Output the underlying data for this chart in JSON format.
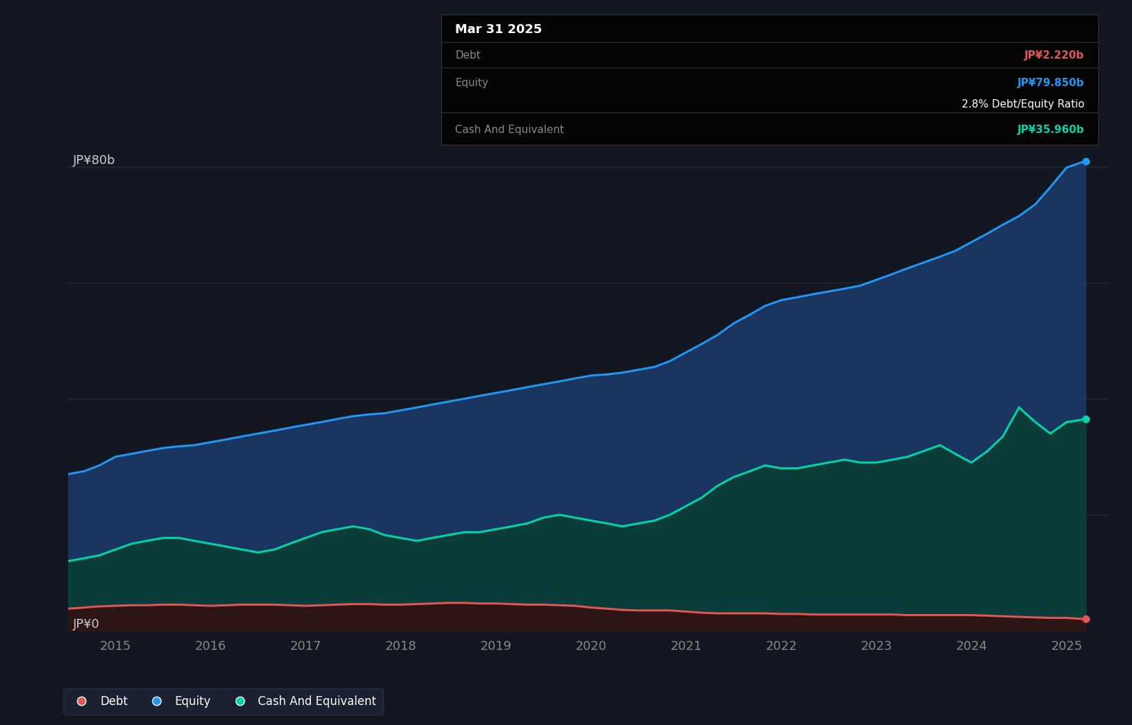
{
  "background_color": "#131722",
  "plot_bg_color": "#131722",
  "grid_color": "#1e2d3d",
  "ylabel_80": "JP¥80b",
  "ylabel_0": "JP¥0",
  "x_ticks": [
    2015,
    2016,
    2017,
    2018,
    2019,
    2020,
    2021,
    2022,
    2023,
    2024,
    2025
  ],
  "equity_color": "#2196f3",
  "equity_fill": "#1a3560",
  "cash_color": "#00d4aa",
  "cash_fill": "#0a3d3a",
  "debt_color": "#e05555",
  "debt_fill": "#2d1515",
  "tooltip_bg": "#050505",
  "tooltip_border": "#333333",
  "tooltip_title": "Mar 31 2025",
  "tooltip_debt_label": "Debt",
  "tooltip_debt_value": "JP¥2.220b",
  "tooltip_equity_label": "Equity",
  "tooltip_equity_value": "JP¥79.850b",
  "tooltip_ratio": "2.8% Debt/Equity Ratio",
  "tooltip_cash_label": "Cash And Equivalent",
  "tooltip_cash_value": "JP¥35.960b",
  "legend_items": [
    "Debt",
    "Equity",
    "Cash And Equivalent"
  ],
  "ylim_min": 0,
  "ylim_max": 90,
  "xlim_start": 2014.5,
  "xlim_end": 2025.45,
  "equity_x": [
    2014.5,
    2014.67,
    2014.83,
    2015.0,
    2015.17,
    2015.33,
    2015.5,
    2015.67,
    2015.83,
    2016.0,
    2016.17,
    2016.33,
    2016.5,
    2016.67,
    2016.83,
    2017.0,
    2017.17,
    2017.33,
    2017.5,
    2017.67,
    2017.83,
    2018.0,
    2018.17,
    2018.33,
    2018.5,
    2018.67,
    2018.83,
    2019.0,
    2019.17,
    2019.33,
    2019.5,
    2019.67,
    2019.83,
    2020.0,
    2020.17,
    2020.33,
    2020.5,
    2020.67,
    2020.83,
    2021.0,
    2021.17,
    2021.33,
    2021.5,
    2021.67,
    2021.83,
    2022.0,
    2022.17,
    2022.33,
    2022.5,
    2022.67,
    2022.83,
    2023.0,
    2023.17,
    2023.33,
    2023.5,
    2023.67,
    2023.83,
    2024.0,
    2024.17,
    2024.33,
    2024.5,
    2024.67,
    2024.83,
    2025.0,
    2025.2
  ],
  "equity_y": [
    27,
    27.5,
    28.5,
    30,
    30.5,
    31,
    31.5,
    31.8,
    32,
    32.5,
    33,
    33.5,
    34,
    34.5,
    35,
    35.5,
    36,
    36.5,
    37,
    37.3,
    37.5,
    38,
    38.5,
    39,
    39.5,
    40,
    40.5,
    41,
    41.5,
    42,
    42.5,
    43,
    43.5,
    44,
    44.2,
    44.5,
    45,
    45.5,
    46.5,
    48,
    49.5,
    51,
    53,
    54.5,
    56,
    57,
    57.5,
    58,
    58.5,
    59,
    59.5,
    60.5,
    61.5,
    62.5,
    63.5,
    64.5,
    65.5,
    67,
    68.5,
    70,
    71.5,
    73.5,
    76.5,
    79.85,
    81
  ],
  "cash_x": [
    2014.5,
    2014.67,
    2014.83,
    2015.0,
    2015.17,
    2015.33,
    2015.5,
    2015.67,
    2015.83,
    2016.0,
    2016.17,
    2016.33,
    2016.5,
    2016.67,
    2016.83,
    2017.0,
    2017.17,
    2017.33,
    2017.5,
    2017.67,
    2017.83,
    2018.0,
    2018.17,
    2018.33,
    2018.5,
    2018.67,
    2018.83,
    2019.0,
    2019.17,
    2019.33,
    2019.5,
    2019.67,
    2019.83,
    2020.0,
    2020.17,
    2020.33,
    2020.5,
    2020.67,
    2020.83,
    2021.0,
    2021.17,
    2021.33,
    2021.5,
    2021.67,
    2021.83,
    2022.0,
    2022.17,
    2022.33,
    2022.5,
    2022.67,
    2022.83,
    2023.0,
    2023.17,
    2023.33,
    2023.5,
    2023.67,
    2023.83,
    2024.0,
    2024.17,
    2024.33,
    2024.5,
    2024.67,
    2024.83,
    2025.0,
    2025.2
  ],
  "cash_y": [
    12,
    12.5,
    13,
    14,
    15,
    15.5,
    16,
    16,
    15.5,
    15,
    14.5,
    14,
    13.5,
    14,
    15,
    16,
    17,
    17.5,
    18,
    17.5,
    16.5,
    16,
    15.5,
    16,
    16.5,
    17,
    17,
    17.5,
    18,
    18.5,
    19.5,
    20,
    19.5,
    19,
    18.5,
    18,
    18.5,
    19,
    20,
    21.5,
    23,
    25,
    26.5,
    27.5,
    28.5,
    28,
    28,
    28.5,
    29,
    29.5,
    29,
    29,
    29.5,
    30,
    31,
    32,
    30.5,
    29,
    31,
    33.5,
    38.5,
    36,
    34,
    35.96,
    36.5
  ],
  "debt_x": [
    2014.5,
    2014.67,
    2014.83,
    2015.0,
    2015.17,
    2015.33,
    2015.5,
    2015.67,
    2015.83,
    2016.0,
    2016.17,
    2016.33,
    2016.5,
    2016.67,
    2016.83,
    2017.0,
    2017.17,
    2017.33,
    2017.5,
    2017.67,
    2017.83,
    2018.0,
    2018.17,
    2018.33,
    2018.5,
    2018.67,
    2018.83,
    2019.0,
    2019.17,
    2019.33,
    2019.5,
    2019.67,
    2019.83,
    2020.0,
    2020.17,
    2020.33,
    2020.5,
    2020.67,
    2020.83,
    2021.0,
    2021.17,
    2021.33,
    2021.5,
    2021.67,
    2021.83,
    2022.0,
    2022.17,
    2022.33,
    2022.5,
    2022.67,
    2022.83,
    2023.0,
    2023.17,
    2023.33,
    2023.5,
    2023.67,
    2023.83,
    2024.0,
    2024.17,
    2024.33,
    2024.5,
    2024.67,
    2024.83,
    2025.0,
    2025.2
  ],
  "debt_y": [
    3.8,
    4.0,
    4.2,
    4.3,
    4.4,
    4.4,
    4.5,
    4.5,
    4.4,
    4.3,
    4.4,
    4.5,
    4.5,
    4.5,
    4.4,
    4.3,
    4.4,
    4.5,
    4.6,
    4.6,
    4.5,
    4.5,
    4.6,
    4.7,
    4.8,
    4.8,
    4.7,
    4.7,
    4.6,
    4.5,
    4.5,
    4.4,
    4.3,
    4.0,
    3.8,
    3.6,
    3.5,
    3.5,
    3.5,
    3.3,
    3.1,
    3.0,
    3.0,
    3.0,
    3.0,
    2.9,
    2.9,
    2.8,
    2.8,
    2.8,
    2.8,
    2.8,
    2.8,
    2.7,
    2.7,
    2.7,
    2.7,
    2.7,
    2.6,
    2.5,
    2.4,
    2.3,
    2.22,
    2.22,
    2.0
  ]
}
